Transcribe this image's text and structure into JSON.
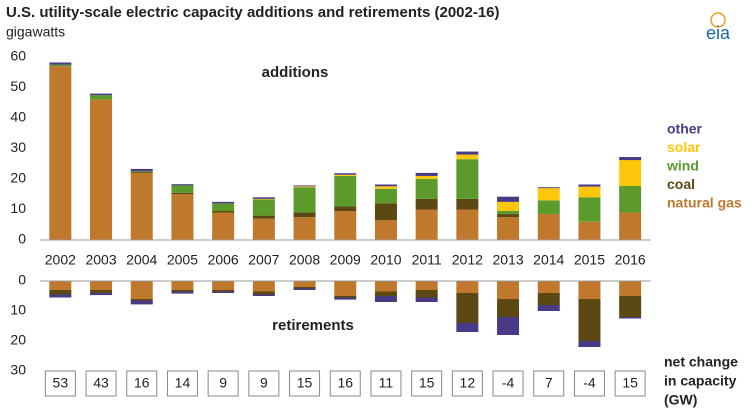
{
  "title": "U.S. utility-scale electric capacity additions and retirements (2002-16)",
  "subtitle": "gigawatts",
  "logo": "eia",
  "chart_data": [
    {
      "type": "stacked-bar",
      "label": "additions",
      "categories": [
        "2002",
        "2003",
        "2004",
        "2005",
        "2006",
        "2007",
        "2008",
        "2009",
        "2010",
        "2011",
        "2012",
        "2013",
        "2014",
        "2015",
        "2016"
      ],
      "ylim": [
        0,
        60
      ],
      "yticks": [
        0,
        10,
        20,
        30,
        40,
        50,
        60
      ],
      "series": [
        {
          "name": "natural gas",
          "color": "#c0782c",
          "values": [
            57,
            46,
            22,
            15,
            9,
            7,
            7.5,
            9.5,
            6.5,
            10,
            10,
            7.5,
            8.5,
            6,
            9
          ]
        },
        {
          "name": "coal",
          "color": "#5c4813",
          "values": [
            0,
            0,
            0.3,
            0.5,
            0.5,
            1,
            1.5,
            1.5,
            5.5,
            3.5,
            3.5,
            1,
            0,
            0,
            0
          ]
        },
        {
          "name": "wind",
          "color": "#5c9a2c",
          "values": [
            0.5,
            1.5,
            0.3,
            2.4,
            2.5,
            5.3,
            8.3,
            10,
            4.8,
            6.5,
            13,
            1,
            4.5,
            8,
            8.7
          ]
        },
        {
          "name": "solar",
          "color": "#ffc60a",
          "values": [
            0,
            0,
            0,
            0,
            0,
            0.2,
            0.3,
            0.4,
            0.8,
            1,
            1.5,
            3,
            4,
            3.5,
            8.5
          ]
        },
        {
          "name": "other",
          "color": "#4a3a86",
          "values": [
            0.7,
            0.5,
            0.7,
            0.4,
            0.5,
            0.5,
            0.3,
            0.5,
            0.6,
            1,
            1,
            1.7,
            0.3,
            0.7,
            1
          ]
        }
      ]
    },
    {
      "type": "stacked-bar-down",
      "label": "retirements",
      "ylim": [
        0,
        30
      ],
      "yticks": [
        0,
        10,
        20,
        30
      ],
      "series": [
        {
          "name": "natural gas",
          "color": "#c0782c",
          "values": [
            3,
            3,
            6,
            3,
            3,
            3.5,
            2,
            5,
            3.5,
            3,
            4,
            6,
            4,
            6,
            5
          ]
        },
        {
          "name": "coal",
          "color": "#5c4813",
          "values": [
            1.5,
            1,
            0.5,
            0.5,
            0.5,
            1,
            0.5,
            0.5,
            1.5,
            2.5,
            10,
            6,
            4,
            14,
            7
          ]
        },
        {
          "name": "other",
          "color": "#4a3a86",
          "values": [
            1,
            0.7,
            1.3,
            0.7,
            0.5,
            0.5,
            0.5,
            0.7,
            2,
            1.5,
            3,
            6,
            2,
            2,
            0.5
          ]
        }
      ]
    }
  ],
  "net_change": {
    "label": [
      "net change",
      "in capacity",
      "(GW)"
    ],
    "values": [
      53,
      43,
      16,
      14,
      9,
      9,
      15,
      16,
      11,
      15,
      12,
      -4,
      7,
      -4,
      15
    ]
  }
}
